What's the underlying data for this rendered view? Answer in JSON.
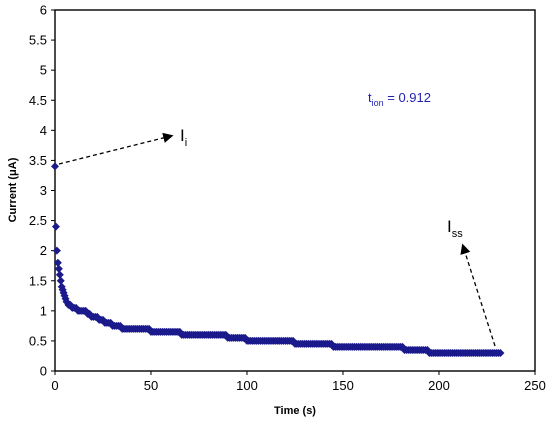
{
  "chart_data": {
    "type": "scatter",
    "xlabel": "Time (s)",
    "ylabel_main": "Current (",
    "ylabel_unit_mu": "μ",
    "ylabel_end": "A)",
    "xlim": [
      0,
      250
    ],
    "ylim": [
      0,
      6
    ],
    "xticks": [
      0,
      50,
      100,
      150,
      200,
      250
    ],
    "yticks": [
      0,
      0.5,
      1,
      1.5,
      2,
      2.5,
      3,
      3.5,
      4,
      4.5,
      5,
      5.5,
      6
    ],
    "xtick_labels": [
      "0",
      "50",
      "100",
      "150",
      "200",
      "250"
    ],
    "ytick_labels": [
      "0",
      "0.5",
      "1",
      "1.5",
      "2",
      "2.5",
      "3",
      "3.5",
      "4",
      "4.5",
      "5",
      "5.5",
      "6"
    ],
    "grid": false,
    "legend": "none",
    "marker_color": "#1a1a8c",
    "series": [
      {
        "x": [
          0,
          0.5,
          1,
          1.5,
          2,
          2.5,
          3,
          3.5,
          4,
          4.5,
          5,
          5.5,
          6,
          7,
          8,
          9,
          10,
          11,
          12,
          13,
          14,
          15,
          16,
          17,
          18,
          19,
          20,
          21,
          22,
          23,
          24,
          25,
          26,
          27,
          28,
          29,
          30,
          31,
          32,
          33,
          34,
          35,
          36,
          37,
          38,
          39,
          40,
          41,
          42,
          43,
          44,
          45,
          46,
          47,
          48,
          49,
          50,
          51,
          52,
          53,
          54,
          55,
          56,
          57,
          58,
          59,
          60,
          61,
          62,
          63,
          64,
          65,
          66,
          67,
          68,
          69,
          70,
          71,
          72,
          73,
          74,
          75,
          76,
          77,
          78,
          79,
          80,
          81,
          82,
          83,
          84,
          85,
          86,
          87,
          88,
          89,
          90,
          91,
          92,
          93,
          94,
          95,
          96,
          97,
          98,
          99,
          100,
          101,
          102,
          103,
          104,
          105,
          106,
          107,
          108,
          109,
          110,
          111,
          112,
          113,
          114,
          115,
          116,
          117,
          118,
          119,
          120,
          121,
          122,
          123,
          124,
          125,
          126,
          127,
          128,
          129,
          130,
          131,
          132,
          133,
          134,
          135,
          136,
          137,
          138,
          139,
          140,
          141,
          142,
          143,
          144,
          145,
          146,
          147,
          148,
          149,
          150,
          151,
          152,
          153,
          154,
          155,
          156,
          157,
          158,
          159,
          160,
          161,
          162,
          163,
          164,
          165,
          166,
          167,
          168,
          169,
          170,
          171,
          172,
          173,
          174,
          175,
          176,
          177,
          178,
          179,
          180,
          181,
          182,
          183,
          184,
          185,
          186,
          187,
          188,
          189,
          190,
          191,
          192,
          193,
          194,
          195,
          196,
          197,
          198,
          199,
          200,
          201,
          202,
          203,
          204,
          205,
          206,
          207,
          208,
          209,
          210,
          211,
          212,
          213,
          214,
          215,
          216,
          217,
          218,
          219,
          220,
          221,
          222,
          223,
          224,
          225,
          226,
          227,
          228,
          229,
          230,
          231,
          232
        ],
        "y": [
          3.4,
          2.4,
          2.0,
          1.8,
          1.7,
          1.6,
          1.5,
          1.4,
          1.35,
          1.3,
          1.25,
          1.2,
          1.15,
          1.1,
          1.1,
          1.05,
          1.05,
          1.05,
          1.0,
          1.0,
          1.0,
          1.0,
          1.0,
          0.95,
          0.95,
          0.9,
          0.9,
          0.9,
          0.9,
          0.85,
          0.85,
          0.85,
          0.8,
          0.8,
          0.8,
          0.8,
          0.75,
          0.75,
          0.75,
          0.75,
          0.75,
          0.7,
          0.7,
          0.7,
          0.7,
          0.7,
          0.7,
          0.7,
          0.7,
          0.7,
          0.7,
          0.7,
          0.7,
          0.7,
          0.7,
          0.7,
          0.65,
          0.65,
          0.65,
          0.65,
          0.65,
          0.65,
          0.65,
          0.65,
          0.65,
          0.65,
          0.65,
          0.65,
          0.65,
          0.65,
          0.65,
          0.65,
          0.6,
          0.6,
          0.6,
          0.6,
          0.6,
          0.6,
          0.6,
          0.6,
          0.6,
          0.6,
          0.6,
          0.6,
          0.6,
          0.6,
          0.6,
          0.6,
          0.6,
          0.6,
          0.6,
          0.6,
          0.6,
          0.6,
          0.6,
          0.6,
          0.55,
          0.55,
          0.55,
          0.55,
          0.55,
          0.55,
          0.55,
          0.55,
          0.55,
          0.55,
          0.5,
          0.5,
          0.5,
          0.5,
          0.5,
          0.5,
          0.5,
          0.5,
          0.5,
          0.5,
          0.5,
          0.5,
          0.5,
          0.5,
          0.5,
          0.5,
          0.5,
          0.5,
          0.5,
          0.5,
          0.5,
          0.5,
          0.5,
          0.5,
          0.5,
          0.45,
          0.45,
          0.45,
          0.45,
          0.45,
          0.45,
          0.45,
          0.45,
          0.45,
          0.45,
          0.45,
          0.45,
          0.45,
          0.45,
          0.45,
          0.45,
          0.45,
          0.45,
          0.45,
          0.45,
          0.4,
          0.4,
          0.4,
          0.4,
          0.4,
          0.4,
          0.4,
          0.4,
          0.4,
          0.4,
          0.4,
          0.4,
          0.4,
          0.4,
          0.4,
          0.4,
          0.4,
          0.4,
          0.4,
          0.4,
          0.4,
          0.4,
          0.4,
          0.4,
          0.4,
          0.4,
          0.4,
          0.4,
          0.4,
          0.4,
          0.4,
          0.4,
          0.4,
          0.4,
          0.4,
          0.4,
          0.4,
          0.35,
          0.35,
          0.35,
          0.35,
          0.35,
          0.35,
          0.35,
          0.35,
          0.35,
          0.35,
          0.35,
          0.35,
          0.35,
          0.3,
          0.3,
          0.3,
          0.3,
          0.3,
          0.3,
          0.3,
          0.3,
          0.3,
          0.3,
          0.3,
          0.3,
          0.3,
          0.3,
          0.3,
          0.3,
          0.3,
          0.3,
          0.3,
          0.3,
          0.3,
          0.3,
          0.3,
          0.3,
          0.3,
          0.3,
          0.3,
          0.3,
          0.3,
          0.3,
          0.3,
          0.3,
          0.3,
          0.3,
          0.3,
          0.3,
          0.3,
          0.3
        ]
      }
    ],
    "annotations": {
      "ii": {
        "main": "I",
        "sub": "i"
      },
      "iss": {
        "main": "I",
        "sub": "ss"
      },
      "tion": {
        "main": "t",
        "sub": "ion",
        "rest": " = 0.912"
      }
    }
  }
}
